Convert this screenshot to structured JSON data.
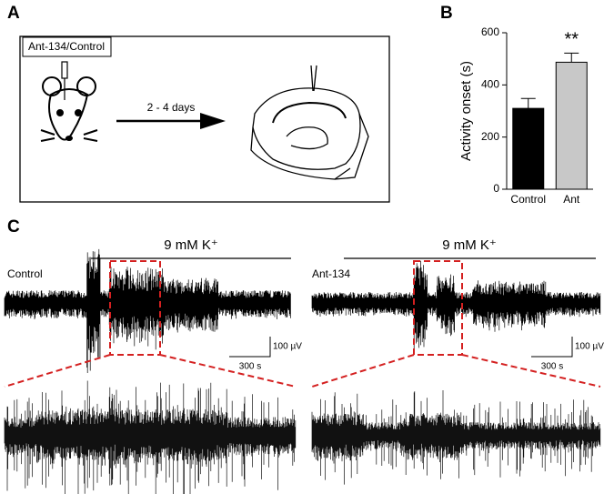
{
  "panel_a": {
    "label": "A",
    "box_label": "Ant-134/Control",
    "arrow_label": "2 - 4 days"
  },
  "chart_data": {
    "type": "bar",
    "panel_label": "B",
    "y_label": "Activity onset (s)",
    "categories": [
      "Control",
      "Ant"
    ],
    "values": [
      310,
      487
    ],
    "errors": [
      38,
      35
    ],
    "colors": [
      "#000000",
      "#c8c8c8"
    ],
    "annotations": [
      "",
      "**"
    ],
    "ylim": [
      0,
      600
    ],
    "yticks": [
      0,
      200,
      400,
      600
    ]
  },
  "panel_c": {
    "label": "C",
    "left": {
      "stimulus": "9 mM K⁺",
      "trace_label": "Control",
      "scale_v": "100 µV",
      "scale_t": "300 s"
    },
    "right": {
      "stimulus": "9 mM K⁺",
      "trace_label": "Ant-134",
      "scale_v": "100 µV",
      "scale_t": "300 s"
    }
  }
}
